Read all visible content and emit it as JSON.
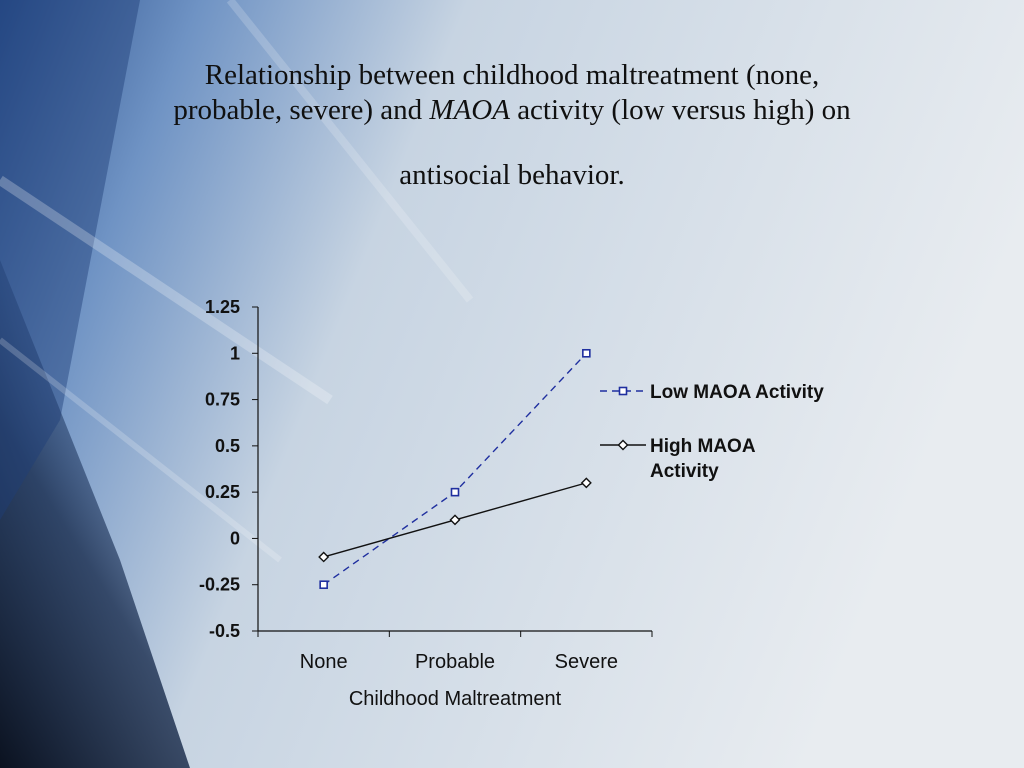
{
  "slide": {
    "title_part1": "Relationship between childhood maltreatment (none,",
    "title_part2a": "probable, severe) and ",
    "title_part2_italic": "MAOA",
    "title_part2b": " activity (low versus high) on",
    "title_part3": "antisocial behavior."
  },
  "colors": {
    "low_series": "#1f2f9f",
    "high_series": "#111111",
    "axis": "#111111",
    "text": "#111111"
  },
  "chart_data": {
    "type": "line",
    "categories": [
      "None",
      "Probable",
      "Severe"
    ],
    "series": [
      {
        "name": "Low MAOA Activity",
        "values": [
          -0.25,
          0.25,
          1.0
        ],
        "style": "dashed",
        "marker": "square"
      },
      {
        "name": "High MAOA Activity",
        "values": [
          -0.1,
          0.1,
          0.3
        ],
        "style": "solid",
        "marker": "diamond"
      }
    ],
    "xlabel": "Childhood Maltreatment",
    "ylabel": "",
    "ylim": [
      -0.5,
      1.25
    ],
    "yticks": [
      -0.5,
      -0.25,
      0,
      0.25,
      0.5,
      0.75,
      1,
      1.25
    ],
    "ytick_labels": [
      "-0.5",
      "-0.25",
      "0",
      "0.25",
      "0.5",
      "0.75",
      "1",
      "1.25"
    ],
    "grid": false,
    "legend_position": "right"
  }
}
